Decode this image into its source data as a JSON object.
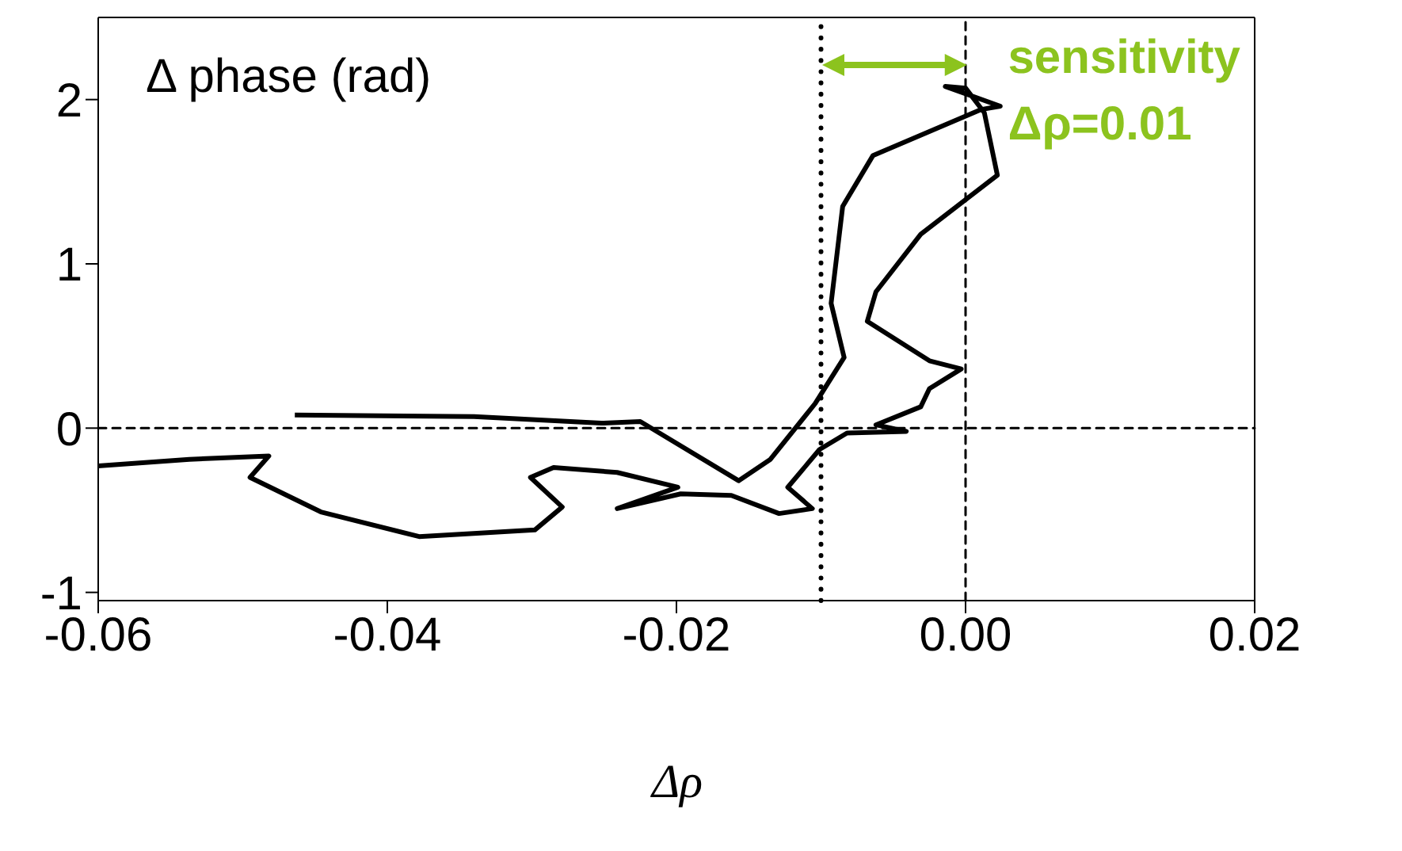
{
  "chart_data": {
    "type": "line",
    "xlabel": "Δρ",
    "ylabel": "Δ phase (rad)",
    "xlim": [
      -0.06,
      0.02
    ],
    "xticks": [
      -0.06,
      -0.04,
      -0.02,
      {
        "value": 0,
        "label": "0.00"
      },
      0.02
    ],
    "ylim": [
      -1.05,
      2.5
    ],
    "yticks": [
      -1,
      0,
      1,
      2
    ],
    "marker": "none",
    "line_style": "solid",
    "series": [
      {
        "color": "#000000",
        "x": [
          -0.0464,
          -0.034,
          -0.0252,
          -0.0225,
          -0.0157,
          -0.0135,
          -0.0104,
          -0.0084,
          -0.0093,
          -0.0085,
          -0.0064,
          0.0011,
          0.0024,
          -0.0014,
          0.0,
          0.0013,
          0.0022,
          -0.0031,
          -0.0062,
          -0.0068,
          -0.0025,
          -0.0003,
          -0.0025,
          -0.0031,
          -0.0062,
          -0.0041,
          -0.0082,
          -0.0101,
          -0.0123,
          -0.0106,
          -0.0129,
          -0.0162,
          -0.0197,
          -0.0241,
          -0.0199,
          -0.0241,
          -0.0285,
          -0.0301,
          -0.0279,
          -0.0298,
          -0.0378,
          -0.0446,
          -0.0495,
          -0.0482,
          -0.0537,
          -0.06
        ],
        "values": [
          0.08,
          0.07,
          0.03,
          0.04,
          -0.32,
          -0.19,
          0.15,
          0.43,
          0.76,
          1.35,
          1.66,
          1.94,
          1.96,
          2.08,
          2.07,
          1.92,
          1.54,
          1.18,
          0.83,
          0.65,
          0.41,
          0.36,
          0.24,
          0.13,
          0.02,
          -0.02,
          -0.03,
          -0.13,
          -0.36,
          -0.49,
          -0.52,
          -0.41,
          -0.4,
          -0.49,
          -0.36,
          -0.27,
          -0.24,
          -0.3,
          -0.48,
          -0.62,
          -0.66,
          -0.51,
          -0.3,
          -0.17,
          -0.19,
          -0.23
        ]
      }
    ],
    "ref_lines": [
      {
        "axis": "x",
        "value": -0.01,
        "line_style": "dotted",
        "color": "#000000"
      },
      {
        "axis": "x",
        "value": 0,
        "line_style": "dashed",
        "color": "#000000"
      },
      {
        "axis": "y",
        "value": 0,
        "line_style": "dashed",
        "color": "#000000"
      }
    ],
    "annotations": [
      "sensitivity Δρ=0.01"
    ]
  }
}
